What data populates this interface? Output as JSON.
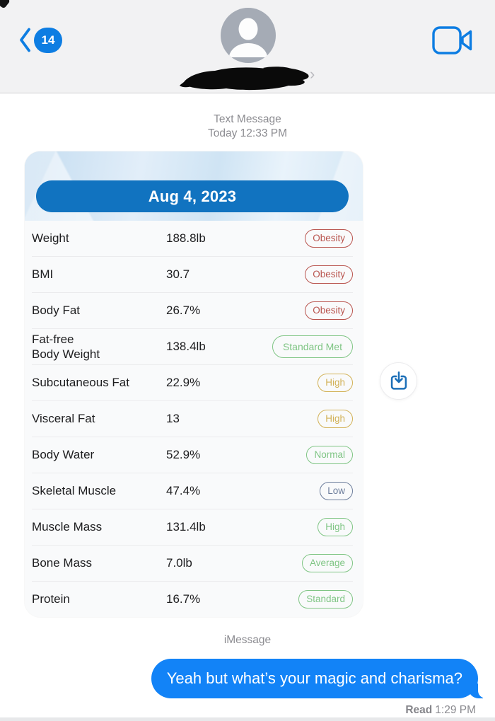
{
  "navbar": {
    "unread_count": "14",
    "contact_chevron": "›"
  },
  "timestamp": {
    "service": "Text Message",
    "datetime": "Today 12:33 PM"
  },
  "report": {
    "date": "Aug 4, 2023",
    "badge_colors": {
      "red": "#b9544e",
      "green": "#7fc584",
      "amber": "#d2b156",
      "slate": "#6d7e9c"
    },
    "rows": [
      {
        "label": "Weight",
        "value": "188.8lb",
        "badge": "Obesity",
        "status": "red"
      },
      {
        "label": "BMI",
        "value": "30.7",
        "badge": "Obesity",
        "status": "red"
      },
      {
        "label": "Body Fat",
        "value": "26.7%",
        "badge": "Obesity",
        "status": "red"
      },
      {
        "label": "Fat-free\nBody Weight",
        "value": "138.4lb",
        "badge": "Standard Met",
        "status": "green",
        "badge_size": "lg"
      },
      {
        "label": "Subcutaneous Fat",
        "value": "22.9%",
        "badge": "High",
        "status": "amber"
      },
      {
        "label": "Visceral Fat",
        "value": "13",
        "badge": "High",
        "status": "amber"
      },
      {
        "label": "Body Water",
        "value": "52.9%",
        "badge": "Normal",
        "status": "green"
      },
      {
        "label": "Skeletal Muscle",
        "value": "47.4%",
        "badge": "Low",
        "status": "slate"
      },
      {
        "label": "Muscle Mass",
        "value": "131.4lb",
        "badge": "High",
        "status": "green"
      },
      {
        "label": "Bone Mass",
        "value": "7.0lb",
        "badge": "Average",
        "status": "green"
      },
      {
        "label": "Protein",
        "value": "16.7%",
        "badge": "Standard",
        "status": "green"
      }
    ]
  },
  "message": {
    "service_label": "iMessage",
    "text": "Yeah but what’s your magic and charisma?",
    "receipt_status": "Read",
    "receipt_time": "1:29 PM"
  },
  "colors": {
    "ios_blue": "#0d7de2",
    "bubble_blue": "#1283f7",
    "date_pill_blue": "#1173c0",
    "avatar_gray": "#a5abb5"
  }
}
